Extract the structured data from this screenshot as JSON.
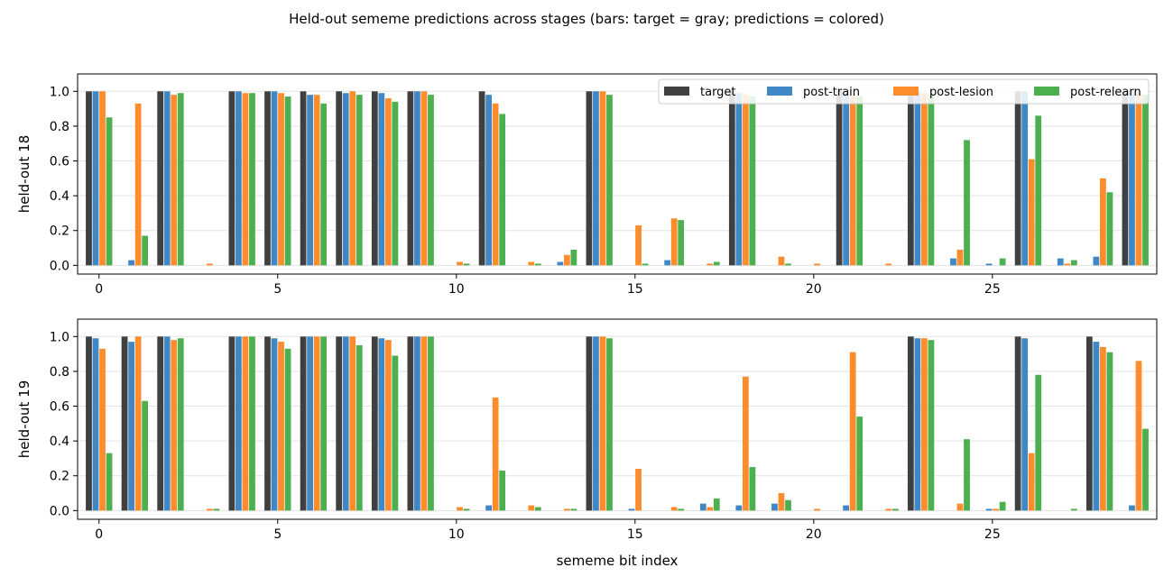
{
  "figure": {
    "title": "Held-out sememe predictions across stages (bars: target = gray; predictions = colored)"
  },
  "chart_data": [
    {
      "type": "bar",
      "ylabel": "held-out 18",
      "xlabel": "",
      "ylim": [
        -0.05,
        1.1
      ],
      "xlim": [
        -0.6,
        29.6
      ],
      "grid": "y",
      "legend": "top-right",
      "x": [
        0,
        1,
        2,
        3,
        4,
        5,
        6,
        7,
        8,
        9,
        10,
        11,
        12,
        13,
        14,
        15,
        16,
        17,
        18,
        19,
        20,
        21,
        22,
        23,
        24,
        25,
        26,
        27,
        28,
        29
      ],
      "xticks": [
        0,
        5,
        10,
        15,
        20,
        25
      ],
      "yticks": [
        "0.0",
        "0.2",
        "0.4",
        "0.6",
        "0.8",
        "1.0"
      ],
      "series": [
        {
          "name": "target",
          "color": "#404040",
          "values": [
            1,
            0,
            1,
            0,
            1,
            1,
            1,
            1,
            1,
            1,
            0,
            1,
            0,
            0,
            1,
            0,
            0,
            0,
            1,
            0,
            0,
            1,
            0,
            1,
            0,
            0,
            1,
            0,
            0,
            1
          ]
        },
        {
          "name": "post-train",
          "color": "#3f88c5",
          "values": [
            1.0,
            0.03,
            1.0,
            0.0,
            1.0,
            1.0,
            0.98,
            0.99,
            0.99,
            1.0,
            0.0,
            0.98,
            0.0,
            0.02,
            1.0,
            0.0,
            0.03,
            0.0,
            0.99,
            0.0,
            0.0,
            0.99,
            0.0,
            1.0,
            0.04,
            0.01,
            1.0,
            0.04,
            0.05,
            1.0
          ]
        },
        {
          "name": "post-lesion",
          "color": "#fd8d2c",
          "values": [
            1.0,
            0.93,
            0.98,
            0.01,
            0.99,
            0.99,
            0.98,
            1.0,
            0.96,
            1.0,
            0.02,
            0.93,
            0.02,
            0.06,
            1.0,
            0.23,
            0.27,
            0.01,
            0.98,
            0.05,
            0.01,
            0.98,
            0.01,
            0.99,
            0.09,
            0.0,
            0.61,
            0.01,
            0.5,
            0.99
          ]
        },
        {
          "name": "post-relearn",
          "color": "#4caf50",
          "values": [
            0.85,
            0.17,
            0.99,
            0.0,
            0.99,
            0.97,
            0.93,
            0.98,
            0.94,
            0.98,
            0.01,
            0.87,
            0.01,
            0.09,
            0.98,
            0.01,
            0.26,
            0.02,
            0.97,
            0.01,
            0.0,
            0.97,
            0.0,
            0.98,
            0.72,
            0.04,
            0.86,
            0.03,
            0.42,
            0.98
          ]
        }
      ]
    },
    {
      "type": "bar",
      "ylabel": "held-out 19",
      "xlabel": "sememe bit index",
      "ylim": [
        -0.05,
        1.1
      ],
      "xlim": [
        -0.6,
        29.6
      ],
      "grid": "y",
      "legend": "",
      "x": [
        0,
        1,
        2,
        3,
        4,
        5,
        6,
        7,
        8,
        9,
        10,
        11,
        12,
        13,
        14,
        15,
        16,
        17,
        18,
        19,
        20,
        21,
        22,
        23,
        24,
        25,
        26,
        27,
        28,
        29
      ],
      "xticks": [
        0,
        5,
        10,
        15,
        20,
        25
      ],
      "yticks": [
        "0.0",
        "0.2",
        "0.4",
        "0.6",
        "0.8",
        "1.0"
      ],
      "series": [
        {
          "name": "target",
          "color": "#404040",
          "values": [
            1,
            1,
            1,
            0,
            1,
            1,
            1,
            1,
            1,
            1,
            0,
            0,
            0,
            0,
            1,
            0,
            0,
            0,
            0,
            0,
            0,
            0,
            0,
            1,
            0,
            0,
            1,
            0,
            1,
            0
          ]
        },
        {
          "name": "post-train",
          "color": "#3f88c5",
          "values": [
            0.99,
            0.97,
            1.0,
            0.0,
            1.0,
            0.99,
            1.0,
            1.0,
            0.99,
            1.0,
            0.0,
            0.03,
            0.0,
            0.0,
            1.0,
            0.01,
            0.0,
            0.04,
            0.03,
            0.04,
            0.0,
            0.03,
            0.0,
            0.99,
            0.0,
            0.01,
            0.99,
            0.0,
            0.97,
            0.03
          ]
        },
        {
          "name": "post-lesion",
          "color": "#fd8d2c",
          "values": [
            0.93,
            1.0,
            0.98,
            0.01,
            1.0,
            0.97,
            1.0,
            1.0,
            0.98,
            1.0,
            0.02,
            0.65,
            0.03,
            0.01,
            1.0,
            0.24,
            0.02,
            0.02,
            0.77,
            0.1,
            0.01,
            0.91,
            0.01,
            0.99,
            0.04,
            0.01,
            0.33,
            0.0,
            0.94,
            0.86
          ]
        },
        {
          "name": "post-relearn",
          "color": "#4caf50",
          "values": [
            0.33,
            0.63,
            0.99,
            0.01,
            1.0,
            0.93,
            1.0,
            0.95,
            0.89,
            1.0,
            0.01,
            0.23,
            0.02,
            0.01,
            0.99,
            0.0,
            0.01,
            0.07,
            0.25,
            0.06,
            0.0,
            0.54,
            0.01,
            0.98,
            0.41,
            0.05,
            0.78,
            0.01,
            0.91,
            0.47
          ]
        }
      ]
    }
  ]
}
